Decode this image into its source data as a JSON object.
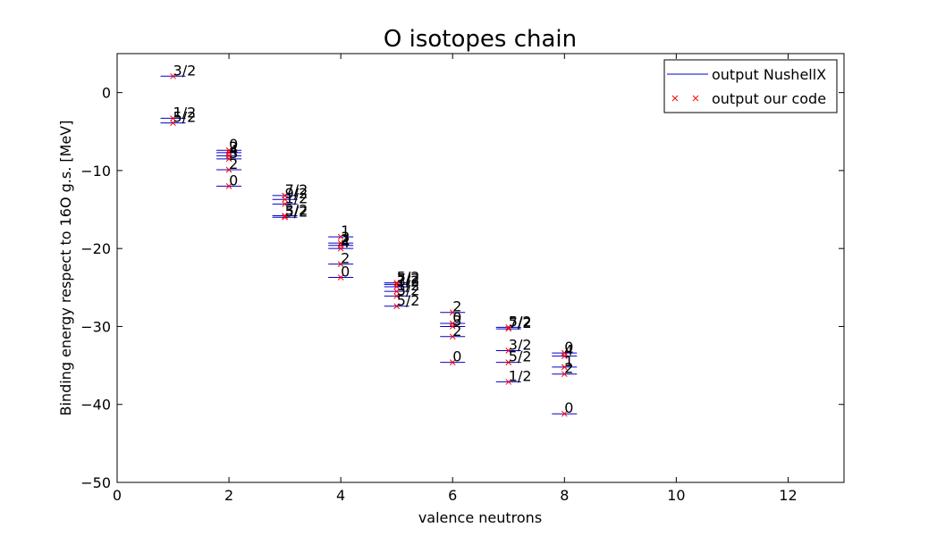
{
  "chart_data": {
    "type": "scatter",
    "title": "O isotopes chain",
    "xlabel": "valence neutrons",
    "ylabel": "Binding energy respect to 16O g.s. [MeV]",
    "xlim": [
      0,
      13
    ],
    "ylim": [
      -50,
      5
    ],
    "xticks": [
      0,
      2,
      4,
      6,
      8,
      10,
      12
    ],
    "yticks": [
      0,
      -10,
      -20,
      -30,
      -40,
      -50
    ],
    "ytick_labels": [
      "0",
      "−10",
      "−20",
      "−30",
      "−40",
      "−50"
    ],
    "grid": false,
    "legend_position": "top-right",
    "colors": {
      "nushellx": "#0000cc",
      "our_code": "#ff0000"
    },
    "series": [
      {
        "name": "output NushellX",
        "marker": "line"
      },
      {
        "name": "output our code",
        "marker": "x"
      }
    ],
    "levels": [
      {
        "x": 1,
        "y": 2.1,
        "label": "3/2"
      },
      {
        "x": 1,
        "y": -3.3,
        "label": "1/2"
      },
      {
        "x": 1,
        "y": -3.9,
        "label": "5/2"
      },
      {
        "x": 2,
        "y": -7.4,
        "label": "0"
      },
      {
        "x": 2,
        "y": -7.7,
        "label": "2"
      },
      {
        "x": 2,
        "y": -8.1,
        "label": "4"
      },
      {
        "x": 2,
        "y": -8.5,
        "label": "3"
      },
      {
        "x": 2,
        "y": -9.9,
        "label": "2"
      },
      {
        "x": 2,
        "y": -12.0,
        "label": "0"
      },
      {
        "x": 3,
        "y": -13.2,
        "label": "7/2"
      },
      {
        "x": 3,
        "y": -13.7,
        "label": "9/2"
      },
      {
        "x": 3,
        "y": -14.3,
        "label": "1/2"
      },
      {
        "x": 3,
        "y": -15.8,
        "label": "3/2"
      },
      {
        "x": 3,
        "y": -16.0,
        "label": "5/2"
      },
      {
        "x": 4,
        "y": -18.5,
        "label": "1"
      },
      {
        "x": 4,
        "y": -19.3,
        "label": "3"
      },
      {
        "x": 4,
        "y": -19.6,
        "label": "2"
      },
      {
        "x": 4,
        "y": -20.0,
        "label": "4"
      },
      {
        "x": 4,
        "y": -22.0,
        "label": "2"
      },
      {
        "x": 4,
        "y": -23.7,
        "label": "0"
      },
      {
        "x": 5,
        "y": -24.4,
        "label": "5/2"
      },
      {
        "x": 5,
        "y": -24.6,
        "label": "7/2"
      },
      {
        "x": 5,
        "y": -24.9,
        "label": "3/2"
      },
      {
        "x": 5,
        "y": -25.5,
        "label": "1/2"
      },
      {
        "x": 5,
        "y": -26.1,
        "label": "3/2"
      },
      {
        "x": 5,
        "y": -27.4,
        "label": "5/2"
      },
      {
        "x": 6,
        "y": -28.2,
        "label": "2"
      },
      {
        "x": 6,
        "y": -29.6,
        "label": "0"
      },
      {
        "x": 6,
        "y": -30.0,
        "label": "3"
      },
      {
        "x": 6,
        "y": -31.3,
        "label": "2"
      },
      {
        "x": 6,
        "y": -34.6,
        "label": "0"
      },
      {
        "x": 7,
        "y": -30.1,
        "label": "5/2"
      },
      {
        "x": 7,
        "y": -30.3,
        "label": "7/2"
      },
      {
        "x": 7,
        "y": -33.1,
        "label": "3/2"
      },
      {
        "x": 7,
        "y": -34.6,
        "label": "5/2"
      },
      {
        "x": 7,
        "y": -37.1,
        "label": "1/2"
      },
      {
        "x": 8,
        "y": -33.4,
        "label": "0"
      },
      {
        "x": 8,
        "y": -33.8,
        "label": "4"
      },
      {
        "x": 8,
        "y": -35.2,
        "label": "1"
      },
      {
        "x": 8,
        "y": -36.1,
        "label": "2"
      },
      {
        "x": 8,
        "y": -41.2,
        "label": "0"
      }
    ]
  }
}
